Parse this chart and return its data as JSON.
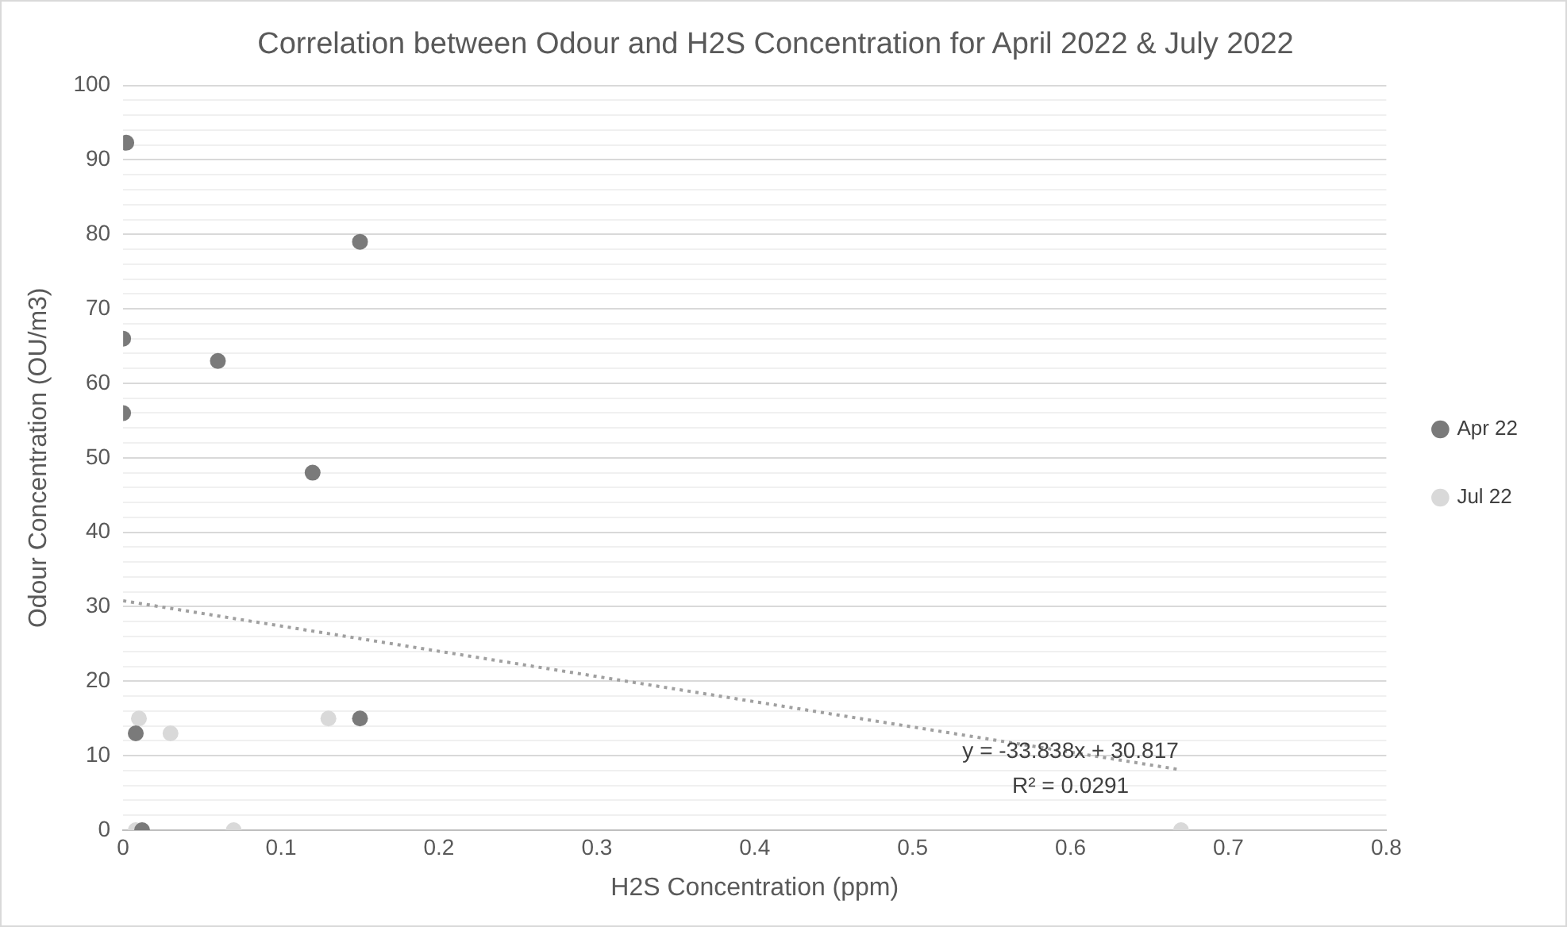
{
  "chart_data": {
    "type": "scatter",
    "title": "Correlation between Odour and H2S Concentration for April 2022 & July 2022",
    "xlabel": "H2S Concentration (ppm)",
    "ylabel": "Odour Concentration (OU/m3)",
    "xlim": [
      0,
      0.8
    ],
    "xticks": [
      0,
      0.1,
      0.2,
      0.3,
      0.4,
      0.5,
      0.6,
      0.7,
      0.8
    ],
    "ylim": [
      0,
      100
    ],
    "yticks": [
      0,
      {
        "value": 2,
        "label": null
      },
      {
        "value": 4,
        "label": null
      },
      {
        "value": 6,
        "label": null
      },
      {
        "value": 8,
        "label": null
      },
      10,
      {
        "value": 12,
        "label": null
      },
      {
        "value": 14,
        "label": null
      },
      {
        "value": 16,
        "label": null
      },
      {
        "value": 18,
        "label": null
      },
      20,
      {
        "value": 22,
        "label": null
      },
      {
        "value": 24,
        "label": null
      },
      {
        "value": 26,
        "label": null
      },
      {
        "value": 28,
        "label": null
      },
      30,
      {
        "value": 32,
        "label": null
      },
      {
        "value": 34,
        "label": null
      },
      {
        "value": 36,
        "label": null
      },
      {
        "value": 38,
        "label": null
      },
      40,
      {
        "value": 42,
        "label": null
      },
      {
        "value": 44,
        "label": null
      },
      {
        "value": 46,
        "label": null
      },
      {
        "value": 48,
        "label": null
      },
      50,
      {
        "value": 52,
        "label": null
      },
      {
        "value": 54,
        "label": null
      },
      {
        "value": 56,
        "label": null
      },
      {
        "value": 58,
        "label": null
      },
      60,
      {
        "value": 62,
        "label": null
      },
      {
        "value": 64,
        "label": null
      },
      {
        "value": 66,
        "label": null
      },
      {
        "value": 68,
        "label": null
      },
      70,
      {
        "value": 72,
        "label": null
      },
      {
        "value": 74,
        "label": null
      },
      {
        "value": 76,
        "label": null
      },
      {
        "value": 78,
        "label": null
      },
      80,
      {
        "value": 82,
        "label": null
      },
      {
        "value": 84,
        "label": null
      },
      {
        "value": 86,
        "label": null
      },
      {
        "value": 88,
        "label": null
      },
      90,
      {
        "value": 92,
        "label": null
      },
      {
        "value": 94,
        "label": null
      },
      {
        "value": 96,
        "label": null
      },
      {
        "value": 98,
        "label": null
      },
      100
    ],
    "grid": "y",
    "legend": "right",
    "marker": "circle",
    "series": [
      {
        "name": "Apr 22",
        "color": "#7a7a7a",
        "x": [
          0.002,
          0,
          0,
          0.06,
          0.15,
          0.12,
          0.15,
          0.008,
          0.012
        ],
        "values": [
          92.3,
          66,
          56,
          63,
          79,
          48,
          15,
          13,
          0
        ]
      },
      {
        "name": "Jul 22",
        "color": "#d9d9d9",
        "x": [
          0.01,
          0.03,
          0.13,
          0.008,
          0.07,
          0.67
        ],
        "values": [
          15,
          13,
          15,
          0,
          0,
          0
        ]
      },
      {
        "type": "line",
        "color": "#a0a0a0",
        "line_style": "dotted",
        "marker": "none",
        "x": [
          0,
          0.67
        ],
        "values": [
          30.8,
          8.1
        ]
      }
    ],
    "annotations": [
      "y = -33.838x + 30.817",
      "R² = 0.0291"
    ]
  }
}
